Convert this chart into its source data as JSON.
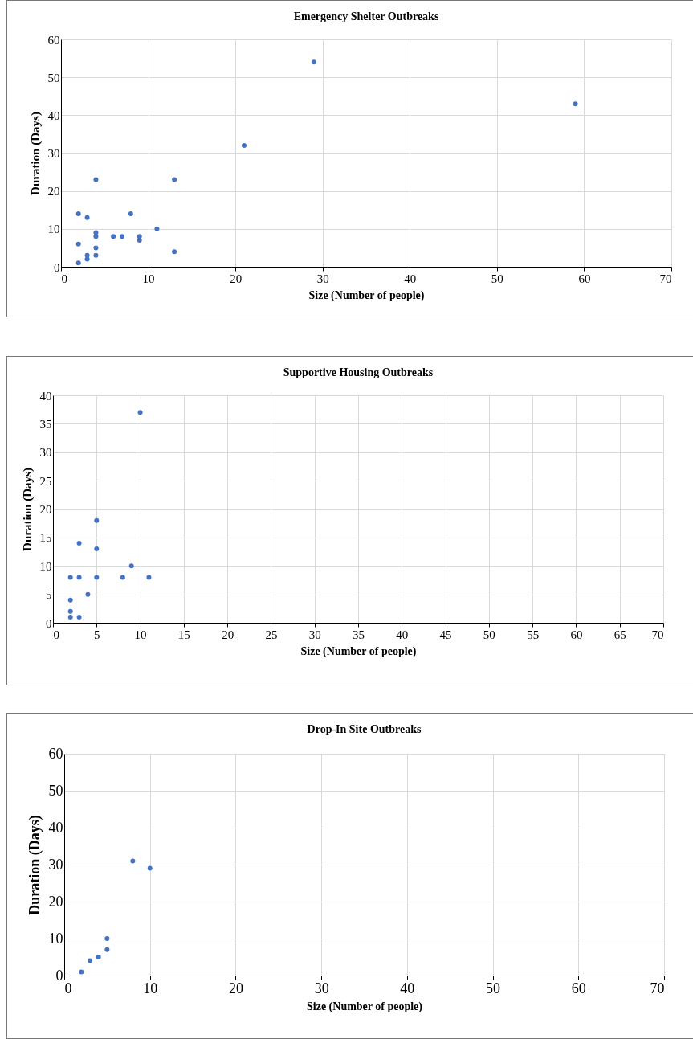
{
  "chart_data": [
    {
      "type": "scatter",
      "title": "Emergency Shelter Outbreaks",
      "xlabel": "Size (Number of people)",
      "ylabel": "Duration (Days)",
      "x": [
        2,
        2,
        2,
        3,
        3,
        3,
        4,
        4,
        4,
        4,
        4,
        6,
        7,
        8,
        9,
        9,
        11,
        13,
        13,
        21,
        29,
        59
      ],
      "series": [
        {
          "color": "#4472c4",
          "values": [
            14,
            6,
            1,
            13,
            3,
            2,
            23,
            9,
            8,
            5,
            3,
            8,
            8,
            14,
            8,
            7,
            10,
            23,
            4,
            32,
            54,
            43
          ]
        }
      ],
      "xlim": [
        0,
        70
      ],
      "xticks": [
        0,
        10,
        20,
        30,
        40,
        50,
        60,
        70
      ],
      "ylim": [
        0,
        60
      ],
      "yticks": [
        0,
        10,
        20,
        30,
        40,
        50,
        60
      ],
      "grid": true,
      "marker": "circle"
    },
    {
      "type": "scatter",
      "title": "Supportive Housing Outbreaks",
      "xlabel": "Size (Number of people)",
      "ylabel": "Duration (Days)",
      "x": [
        10,
        5,
        3,
        5,
        9,
        2,
        3,
        5,
        8,
        11,
        4,
        2,
        2,
        2,
        3
      ],
      "series": [
        {
          "color": "#4472c4",
          "values": [
            37,
            18,
            14,
            13,
            10,
            8,
            8,
            8,
            8,
            8,
            5,
            4,
            2,
            1,
            1
          ]
        }
      ],
      "xlim": [
        0,
        70
      ],
      "xticks": [
        0,
        5,
        10,
        15,
        20,
        25,
        30,
        35,
        40,
        45,
        50,
        55,
        60,
        65,
        70
      ],
      "ylim": [
        0,
        40
      ],
      "yticks": [
        0,
        5,
        10,
        15,
        20,
        25,
        30,
        35,
        40
      ],
      "grid": true,
      "marker": "circle"
    },
    {
      "type": "scatter",
      "title": "Drop-In Site Outbreaks",
      "xlabel": "Size (Number of people)",
      "ylabel": "Duration (Days)",
      "x": [
        8,
        10,
        5,
        5,
        4,
        3,
        2
      ],
      "series": [
        {
          "color": "#4472c4",
          "values": [
            31,
            29,
            10,
            7,
            5,
            4,
            1
          ]
        }
      ],
      "xlim": [
        0,
        70
      ],
      "xticks": [
        0,
        10,
        20,
        30,
        40,
        50,
        60,
        70
      ],
      "ylim": [
        0,
        60
      ],
      "yticks": [
        0,
        10,
        20,
        30,
        40,
        50,
        60
      ],
      "grid": true,
      "marker": "circle"
    }
  ]
}
